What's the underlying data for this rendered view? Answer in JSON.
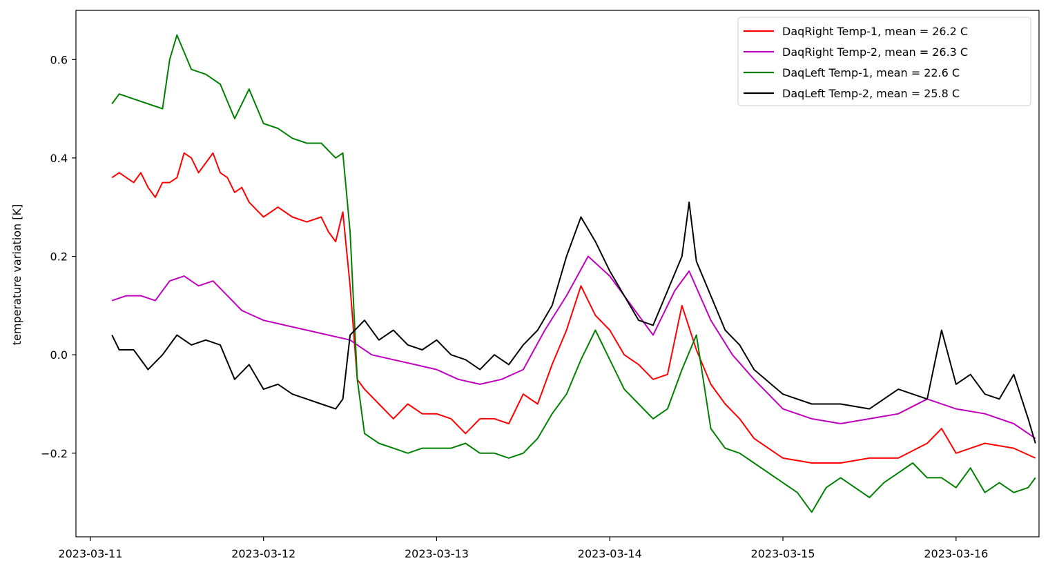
{
  "chart_data": {
    "type": "line",
    "title": "",
    "xlabel": "",
    "ylabel": "temperature variation [K]",
    "x_ticks": [
      "2023-03-11",
      "2023-03-12",
      "2023-03-13",
      "2023-03-14",
      "2023-03-15",
      "2023-03-16"
    ],
    "y_ticks": [
      -0.2,
      0.0,
      0.2,
      0.4,
      0.6
    ],
    "y_tick_labels": [
      "−0.2",
      "0.0",
      "0.2",
      "0.4",
      "0.6"
    ],
    "xlim": [
      "2023-03-10 22:00",
      "2023-03-16 11:30"
    ],
    "ylim": [
      -0.37,
      0.7
    ],
    "grid": false,
    "legend_position": "top-right",
    "x_date_days_note_removed": true,
    "series": [
      {
        "name": "DaqRight Temp-1, mean = 26.2 C",
        "color": "#ff0000",
        "points": [
          [
            "2023-03-11 03:00",
            0.36
          ],
          [
            "2023-03-11 04:00",
            0.37
          ],
          [
            "2023-03-11 05:00",
            0.36
          ],
          [
            "2023-03-11 06:00",
            0.35
          ],
          [
            "2023-03-11 07:00",
            0.37
          ],
          [
            "2023-03-11 08:00",
            0.34
          ],
          [
            "2023-03-11 09:00",
            0.32
          ],
          [
            "2023-03-11 10:00",
            0.35
          ],
          [
            "2023-03-11 11:00",
            0.35
          ],
          [
            "2023-03-11 12:00",
            0.36
          ],
          [
            "2023-03-11 13:00",
            0.41
          ],
          [
            "2023-03-11 14:00",
            0.4
          ],
          [
            "2023-03-11 15:00",
            0.37
          ],
          [
            "2023-03-11 16:00",
            0.39
          ],
          [
            "2023-03-11 17:00",
            0.41
          ],
          [
            "2023-03-11 18:00",
            0.37
          ],
          [
            "2023-03-11 19:00",
            0.36
          ],
          [
            "2023-03-11 20:00",
            0.33
          ],
          [
            "2023-03-11 21:00",
            0.34
          ],
          [
            "2023-03-11 22:00",
            0.31
          ],
          [
            "2023-03-12 00:00",
            0.28
          ],
          [
            "2023-03-12 02:00",
            0.3
          ],
          [
            "2023-03-12 04:00",
            0.28
          ],
          [
            "2023-03-12 06:00",
            0.27
          ],
          [
            "2023-03-12 08:00",
            0.28
          ],
          [
            "2023-03-12 09:00",
            0.25
          ],
          [
            "2023-03-12 10:00",
            0.23
          ],
          [
            "2023-03-12 11:00",
            0.29
          ],
          [
            "2023-03-12 12:00",
            0.14
          ],
          [
            "2023-03-12 13:00",
            -0.05
          ],
          [
            "2023-03-12 14:00",
            -0.07
          ],
          [
            "2023-03-12 16:00",
            -0.1
          ],
          [
            "2023-03-12 18:00",
            -0.13
          ],
          [
            "2023-03-12 20:00",
            -0.1
          ],
          [
            "2023-03-12 22:00",
            -0.12
          ],
          [
            "2023-03-13 00:00",
            -0.12
          ],
          [
            "2023-03-13 02:00",
            -0.13
          ],
          [
            "2023-03-13 04:00",
            -0.16
          ],
          [
            "2023-03-13 06:00",
            -0.13
          ],
          [
            "2023-03-13 08:00",
            -0.13
          ],
          [
            "2023-03-13 10:00",
            -0.14
          ],
          [
            "2023-03-13 12:00",
            -0.08
          ],
          [
            "2023-03-13 14:00",
            -0.1
          ],
          [
            "2023-03-13 16:00",
            -0.02
          ],
          [
            "2023-03-13 18:00",
            0.05
          ],
          [
            "2023-03-13 20:00",
            0.14
          ],
          [
            "2023-03-13 22:00",
            0.08
          ],
          [
            "2023-03-14 00:00",
            0.05
          ],
          [
            "2023-03-14 02:00",
            0.0
          ],
          [
            "2023-03-14 04:00",
            -0.02
          ],
          [
            "2023-03-14 06:00",
            -0.05
          ],
          [
            "2023-03-14 08:00",
            -0.04
          ],
          [
            "2023-03-14 10:00",
            0.1
          ],
          [
            "2023-03-14 12:00",
            0.01
          ],
          [
            "2023-03-14 14:00",
            -0.06
          ],
          [
            "2023-03-14 16:00",
            -0.1
          ],
          [
            "2023-03-14 18:00",
            -0.13
          ],
          [
            "2023-03-14 20:00",
            -0.17
          ],
          [
            "2023-03-15 00:00",
            -0.21
          ],
          [
            "2023-03-15 04:00",
            -0.22
          ],
          [
            "2023-03-15 08:00",
            -0.22
          ],
          [
            "2023-03-15 12:00",
            -0.21
          ],
          [
            "2023-03-15 16:00",
            -0.21
          ],
          [
            "2023-03-15 20:00",
            -0.18
          ],
          [
            "2023-03-15 22:00",
            -0.15
          ],
          [
            "2023-03-16 00:00",
            -0.2
          ],
          [
            "2023-03-16 04:00",
            -0.18
          ],
          [
            "2023-03-16 08:00",
            -0.19
          ],
          [
            "2023-03-16 11:00",
            -0.21
          ]
        ]
      },
      {
        "name": "DaqRight Temp-2, mean = 26.3 C",
        "color": "#bf00bf",
        "points": [
          [
            "2023-03-11 03:00",
            0.11
          ],
          [
            "2023-03-11 05:00",
            0.12
          ],
          [
            "2023-03-11 07:00",
            0.12
          ],
          [
            "2023-03-11 09:00",
            0.11
          ],
          [
            "2023-03-11 11:00",
            0.15
          ],
          [
            "2023-03-11 13:00",
            0.16
          ],
          [
            "2023-03-11 15:00",
            0.14
          ],
          [
            "2023-03-11 17:00",
            0.15
          ],
          [
            "2023-03-11 19:00",
            0.12
          ],
          [
            "2023-03-11 21:00",
            0.09
          ],
          [
            "2023-03-12 00:00",
            0.07
          ],
          [
            "2023-03-12 03:00",
            0.06
          ],
          [
            "2023-03-12 06:00",
            0.05
          ],
          [
            "2023-03-12 09:00",
            0.04
          ],
          [
            "2023-03-12 12:00",
            0.03
          ],
          [
            "2023-03-12 15:00",
            0.0
          ],
          [
            "2023-03-12 18:00",
            -0.01
          ],
          [
            "2023-03-12 21:00",
            -0.02
          ],
          [
            "2023-03-13 00:00",
            -0.03
          ],
          [
            "2023-03-13 03:00",
            -0.05
          ],
          [
            "2023-03-13 06:00",
            -0.06
          ],
          [
            "2023-03-13 09:00",
            -0.05
          ],
          [
            "2023-03-13 12:00",
            -0.03
          ],
          [
            "2023-03-13 15:00",
            0.05
          ],
          [
            "2023-03-13 18:00",
            0.12
          ],
          [
            "2023-03-13 21:00",
            0.2
          ],
          [
            "2023-03-14 00:00",
            0.16
          ],
          [
            "2023-03-14 03:00",
            0.1
          ],
          [
            "2023-03-14 06:00",
            0.04
          ],
          [
            "2023-03-14 09:00",
            0.13
          ],
          [
            "2023-03-14 11:00",
            0.17
          ],
          [
            "2023-03-14 14:00",
            0.07
          ],
          [
            "2023-03-14 17:00",
            0.0
          ],
          [
            "2023-03-14 20:00",
            -0.05
          ],
          [
            "2023-03-15 00:00",
            -0.11
          ],
          [
            "2023-03-15 04:00",
            -0.13
          ],
          [
            "2023-03-15 08:00",
            -0.14
          ],
          [
            "2023-03-15 12:00",
            -0.13
          ],
          [
            "2023-03-15 16:00",
            -0.12
          ],
          [
            "2023-03-15 20:00",
            -0.09
          ],
          [
            "2023-03-16 00:00",
            -0.11
          ],
          [
            "2023-03-16 04:00",
            -0.12
          ],
          [
            "2023-03-16 08:00",
            -0.14
          ],
          [
            "2023-03-16 11:00",
            -0.17
          ]
        ]
      },
      {
        "name": "DaqLeft Temp-1, mean = 22.6 C",
        "color": "#008000",
        "points": [
          [
            "2023-03-11 03:00",
            0.51
          ],
          [
            "2023-03-11 04:00",
            0.53
          ],
          [
            "2023-03-11 06:00",
            0.52
          ],
          [
            "2023-03-11 08:00",
            0.51
          ],
          [
            "2023-03-11 10:00",
            0.5
          ],
          [
            "2023-03-11 11:00",
            0.6
          ],
          [
            "2023-03-11 12:00",
            0.65
          ],
          [
            "2023-03-11 14:00",
            0.58
          ],
          [
            "2023-03-11 16:00",
            0.57
          ],
          [
            "2023-03-11 18:00",
            0.55
          ],
          [
            "2023-03-11 20:00",
            0.48
          ],
          [
            "2023-03-11 22:00",
            0.54
          ],
          [
            "2023-03-12 00:00",
            0.47
          ],
          [
            "2023-03-12 02:00",
            0.46
          ],
          [
            "2023-03-12 04:00",
            0.44
          ],
          [
            "2023-03-12 06:00",
            0.43
          ],
          [
            "2023-03-12 08:00",
            0.43
          ],
          [
            "2023-03-12 10:00",
            0.4
          ],
          [
            "2023-03-12 11:00",
            0.41
          ],
          [
            "2023-03-12 12:00",
            0.25
          ],
          [
            "2023-03-12 13:00",
            -0.05
          ],
          [
            "2023-03-12 14:00",
            -0.16
          ],
          [
            "2023-03-12 16:00",
            -0.18
          ],
          [
            "2023-03-12 18:00",
            -0.19
          ],
          [
            "2023-03-12 20:00",
            -0.2
          ],
          [
            "2023-03-12 22:00",
            -0.19
          ],
          [
            "2023-03-13 00:00",
            -0.19
          ],
          [
            "2023-03-13 02:00",
            -0.19
          ],
          [
            "2023-03-13 04:00",
            -0.18
          ],
          [
            "2023-03-13 06:00",
            -0.2
          ],
          [
            "2023-03-13 08:00",
            -0.2
          ],
          [
            "2023-03-13 10:00",
            -0.21
          ],
          [
            "2023-03-13 12:00",
            -0.2
          ],
          [
            "2023-03-13 14:00",
            -0.17
          ],
          [
            "2023-03-13 16:00",
            -0.12
          ],
          [
            "2023-03-13 18:00",
            -0.08
          ],
          [
            "2023-03-13 20:00",
            -0.01
          ],
          [
            "2023-03-13 22:00",
            0.05
          ],
          [
            "2023-03-14 00:00",
            -0.01
          ],
          [
            "2023-03-14 02:00",
            -0.07
          ],
          [
            "2023-03-14 04:00",
            -0.1
          ],
          [
            "2023-03-14 06:00",
            -0.13
          ],
          [
            "2023-03-14 08:00",
            -0.11
          ],
          [
            "2023-03-14 10:00",
            -0.03
          ],
          [
            "2023-03-14 12:00",
            0.04
          ],
          [
            "2023-03-14 14:00",
            -0.15
          ],
          [
            "2023-03-14 16:00",
            -0.19
          ],
          [
            "2023-03-14 18:00",
            -0.2
          ],
          [
            "2023-03-14 20:00",
            -0.22
          ],
          [
            "2023-03-15 00:00",
            -0.26
          ],
          [
            "2023-03-15 02:00",
            -0.28
          ],
          [
            "2023-03-15 04:00",
            -0.32
          ],
          [
            "2023-03-15 06:00",
            -0.27
          ],
          [
            "2023-03-15 08:00",
            -0.25
          ],
          [
            "2023-03-15 10:00",
            -0.27
          ],
          [
            "2023-03-15 12:00",
            -0.29
          ],
          [
            "2023-03-15 14:00",
            -0.26
          ],
          [
            "2023-03-15 16:00",
            -0.24
          ],
          [
            "2023-03-15 18:00",
            -0.22
          ],
          [
            "2023-03-15 20:00",
            -0.25
          ],
          [
            "2023-03-15 22:00",
            -0.25
          ],
          [
            "2023-03-16 00:00",
            -0.27
          ],
          [
            "2023-03-16 02:00",
            -0.23
          ],
          [
            "2023-03-16 04:00",
            -0.28
          ],
          [
            "2023-03-16 06:00",
            -0.26
          ],
          [
            "2023-03-16 08:00",
            -0.28
          ],
          [
            "2023-03-16 10:00",
            -0.27
          ],
          [
            "2023-03-16 11:00",
            -0.25
          ]
        ]
      },
      {
        "name": "DaqLeft Temp-2, mean = 25.8 C",
        "color": "#000000",
        "points": [
          [
            "2023-03-11 03:00",
            0.04
          ],
          [
            "2023-03-11 04:00",
            0.01
          ],
          [
            "2023-03-11 06:00",
            0.01
          ],
          [
            "2023-03-11 08:00",
            -0.03
          ],
          [
            "2023-03-11 10:00",
            0.0
          ],
          [
            "2023-03-11 12:00",
            0.04
          ],
          [
            "2023-03-11 14:00",
            0.02
          ],
          [
            "2023-03-11 16:00",
            0.03
          ],
          [
            "2023-03-11 18:00",
            0.02
          ],
          [
            "2023-03-11 20:00",
            -0.05
          ],
          [
            "2023-03-11 22:00",
            -0.02
          ],
          [
            "2023-03-12 00:00",
            -0.07
          ],
          [
            "2023-03-12 02:00",
            -0.06
          ],
          [
            "2023-03-12 04:00",
            -0.08
          ],
          [
            "2023-03-12 06:00",
            -0.09
          ],
          [
            "2023-03-12 08:00",
            -0.1
          ],
          [
            "2023-03-12 10:00",
            -0.11
          ],
          [
            "2023-03-12 11:00",
            -0.09
          ],
          [
            "2023-03-12 12:00",
            0.04
          ],
          [
            "2023-03-12 14:00",
            0.07
          ],
          [
            "2023-03-12 16:00",
            0.03
          ],
          [
            "2023-03-12 18:00",
            0.05
          ],
          [
            "2023-03-12 20:00",
            0.02
          ],
          [
            "2023-03-12 22:00",
            0.01
          ],
          [
            "2023-03-13 00:00",
            0.03
          ],
          [
            "2023-03-13 02:00",
            0.0
          ],
          [
            "2023-03-13 04:00",
            -0.01
          ],
          [
            "2023-03-13 06:00",
            -0.03
          ],
          [
            "2023-03-13 08:00",
            0.0
          ],
          [
            "2023-03-13 10:00",
            -0.02
          ],
          [
            "2023-03-13 12:00",
            0.02
          ],
          [
            "2023-03-13 14:00",
            0.05
          ],
          [
            "2023-03-13 16:00",
            0.1
          ],
          [
            "2023-03-13 18:00",
            0.2
          ],
          [
            "2023-03-13 20:00",
            0.28
          ],
          [
            "2023-03-13 22:00",
            0.23
          ],
          [
            "2023-03-14 00:00",
            0.17
          ],
          [
            "2023-03-14 02:00",
            0.12
          ],
          [
            "2023-03-14 04:00",
            0.07
          ],
          [
            "2023-03-14 06:00",
            0.06
          ],
          [
            "2023-03-14 08:00",
            0.13
          ],
          [
            "2023-03-14 10:00",
            0.2
          ],
          [
            "2023-03-14 11:00",
            0.31
          ],
          [
            "2023-03-14 12:00",
            0.19
          ],
          [
            "2023-03-14 14:00",
            0.12
          ],
          [
            "2023-03-14 16:00",
            0.05
          ],
          [
            "2023-03-14 18:00",
            0.02
          ],
          [
            "2023-03-14 20:00",
            -0.03
          ],
          [
            "2023-03-15 00:00",
            -0.08
          ],
          [
            "2023-03-15 04:00",
            -0.1
          ],
          [
            "2023-03-15 08:00",
            -0.1
          ],
          [
            "2023-03-15 12:00",
            -0.11
          ],
          [
            "2023-03-15 16:00",
            -0.07
          ],
          [
            "2023-03-15 20:00",
            -0.09
          ],
          [
            "2023-03-15 22:00",
            0.05
          ],
          [
            "2023-03-16 00:00",
            -0.06
          ],
          [
            "2023-03-16 02:00",
            -0.04
          ],
          [
            "2023-03-16 04:00",
            -0.08
          ],
          [
            "2023-03-16 06:00",
            -0.09
          ],
          [
            "2023-03-16 08:00",
            -0.04
          ],
          [
            "2023-03-16 10:00",
            -0.13
          ],
          [
            "2023-03-16 11:00",
            -0.18
          ]
        ]
      }
    ]
  }
}
